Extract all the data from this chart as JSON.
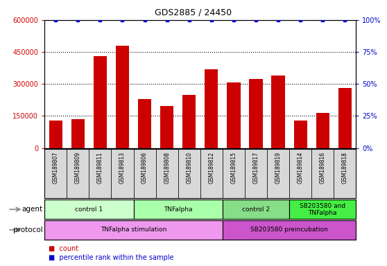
{
  "title": "GDS2885 / 24450",
  "samples": [
    "GSM189807",
    "GSM189809",
    "GSM189811",
    "GSM189813",
    "GSM189806",
    "GSM189808",
    "GSM189810",
    "GSM189812",
    "GSM189815",
    "GSM189817",
    "GSM189819",
    "GSM189814",
    "GSM189816",
    "GSM189818"
  ],
  "counts": [
    128000,
    135000,
    430000,
    480000,
    230000,
    198000,
    250000,
    370000,
    308000,
    325000,
    340000,
    128000,
    165000,
    282000
  ],
  "percentile": [
    100,
    100,
    100,
    100,
    100,
    100,
    100,
    100,
    100,
    100,
    100,
    100,
    100,
    100
  ],
  "bar_color": "#cc0000",
  "dot_color": "#0000cc",
  "ylim_left": [
    0,
    600000
  ],
  "ylim_right": [
    0,
    100
  ],
  "yticks_left": [
    0,
    150000,
    300000,
    450000,
    600000
  ],
  "yticks_right": [
    0,
    25,
    50,
    75,
    100
  ],
  "ytick_labels_left": [
    "0",
    "150000",
    "300000",
    "450000",
    "600000"
  ],
  "ytick_labels_right": [
    "0%",
    "25%",
    "50%",
    "75%",
    "100%"
  ],
  "agent_groups": [
    {
      "label": "control 1",
      "start": 0,
      "end": 4,
      "color": "#ccffcc"
    },
    {
      "label": "TNFalpha",
      "start": 4,
      "end": 8,
      "color": "#aaffaa"
    },
    {
      "label": "control 2",
      "start": 8,
      "end": 11,
      "color": "#88dd88"
    },
    {
      "label": "SB203580 and\nTNFalpha",
      "start": 11,
      "end": 14,
      "color": "#44ee44"
    }
  ],
  "protocol_groups": [
    {
      "label": "TNFalpha stimulation",
      "start": 0,
      "end": 8,
      "color": "#ee99ee"
    },
    {
      "label": "SB203580 preincubation",
      "start": 8,
      "end": 14,
      "color": "#dd66dd"
    }
  ],
  "agent_label": "agent",
  "protocol_label": "protocol",
  "legend_count_color": "#cc0000",
  "legend_dot_color": "#0000cc",
  "background_color": "#ffffff",
  "dotted_line_color": "#000000"
}
